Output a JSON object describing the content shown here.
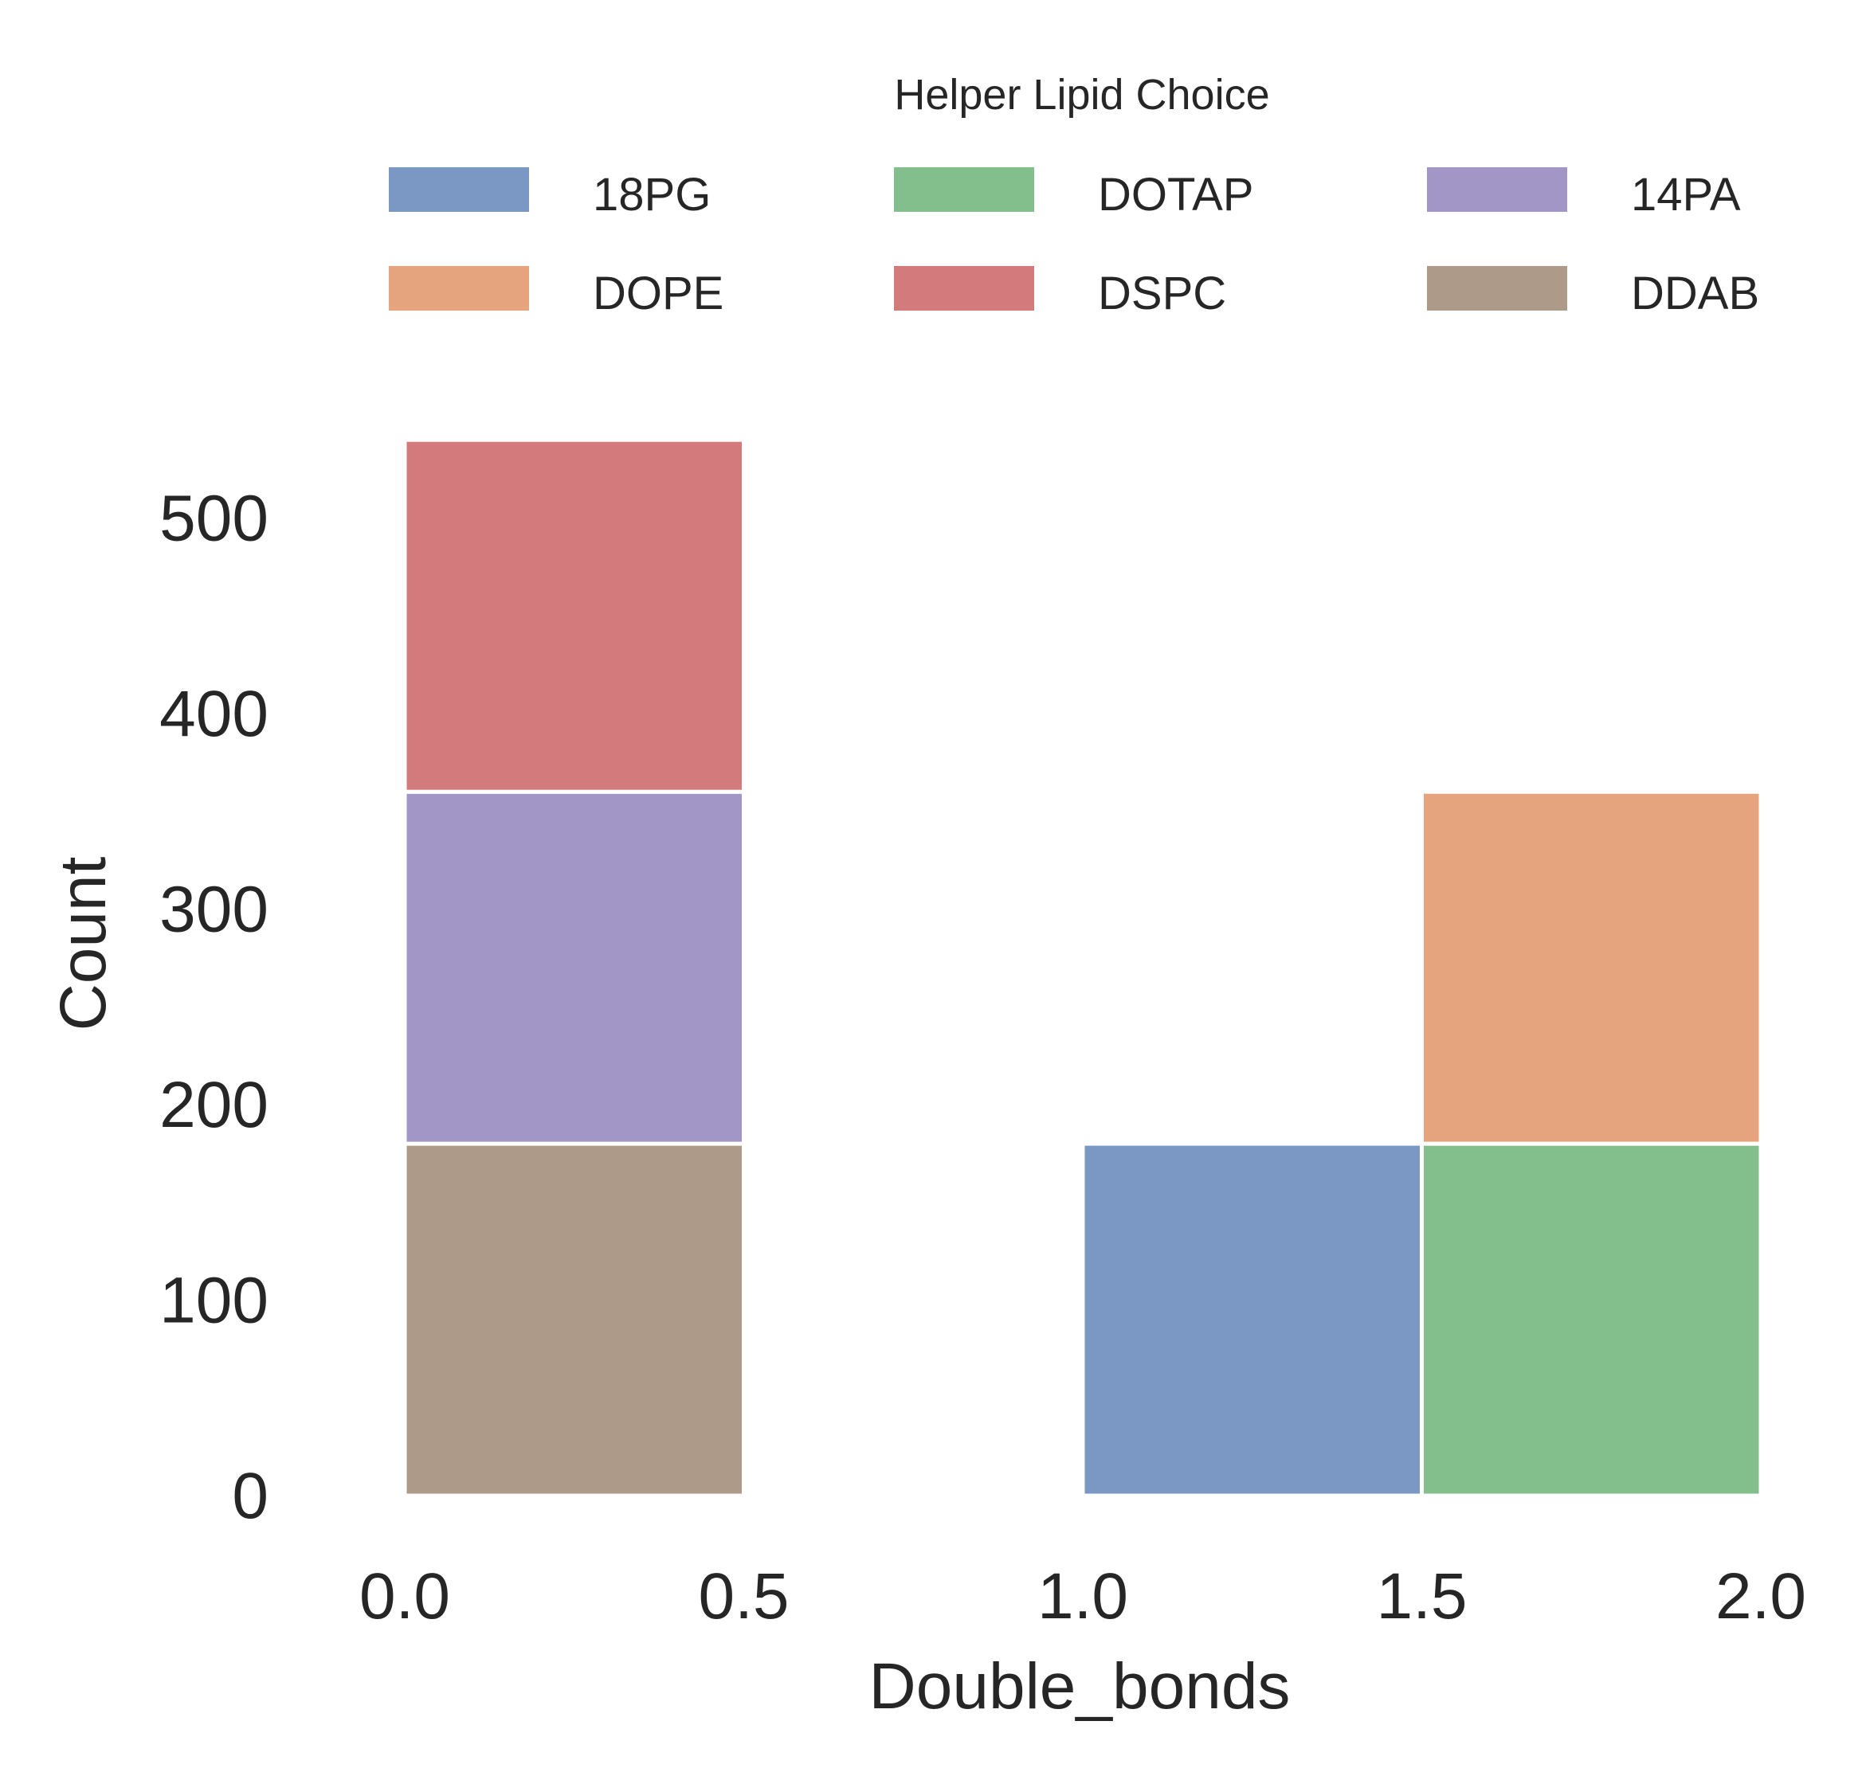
{
  "chart_data": {
    "type": "bar",
    "stacked": true,
    "xlabel": "Double_bonds",
    "ylabel": "Count",
    "xlim": [
      -0.08,
      2.05
    ],
    "ylim": [
      0,
      540
    ],
    "xticks": [
      "0.0",
      "0.5",
      "1.0",
      "1.5",
      "2.0"
    ],
    "yticks": [
      "0",
      "100",
      "200",
      "300",
      "400",
      "500"
    ],
    "grid": false,
    "legend": {
      "title": "Helper Lipid Choice",
      "placement": "top-center",
      "columns": 3,
      "entries": [
        {
          "name": "18PG",
          "color": "#7b97c4"
        },
        {
          "name": "DOPE",
          "color": "#e6a47e"
        },
        {
          "name": "DOTAP",
          "color": "#82bf8d"
        },
        {
          "name": "DSPC",
          "color": "#d37a7c"
        },
        {
          "name": "14PA",
          "color": "#a296c6"
        },
        {
          "name": "DDAB",
          "color": "#ae9a88"
        }
      ]
    },
    "bins": [
      {
        "x0": 0.0,
        "x1": 0.5,
        "segments": [
          {
            "series": "DDAB",
            "count": 180
          },
          {
            "series": "14PA",
            "count": 180
          },
          {
            "series": "DSPC",
            "count": 180
          }
        ]
      },
      {
        "x0": 1.0,
        "x1": 1.5,
        "segments": [
          {
            "series": "18PG",
            "count": 180
          }
        ]
      },
      {
        "x0": 1.5,
        "x1": 2.0,
        "segments": [
          {
            "series": "DOTAP",
            "count": 180
          },
          {
            "series": "DOPE",
            "count": 180
          }
        ]
      }
    ]
  }
}
